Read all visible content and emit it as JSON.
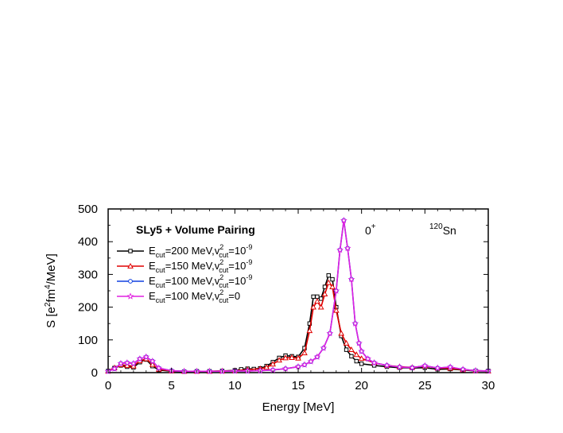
{
  "chart_data": {
    "type": "line",
    "title": "SLy5 + Volume Pairing",
    "annotations": {
      "state": "0",
      "state_sup": "+",
      "nucleus_mass": "120",
      "nucleus_symbol": "Sn"
    },
    "xlabel": "Energy [MeV]",
    "ylabel": {
      "prefix": "S [e",
      "sup1": "2",
      "mid": "fm",
      "sup2": "4",
      "suffix": "/MeV]"
    },
    "xlim": [
      0,
      30
    ],
    "ylim": [
      0,
      500
    ],
    "xticks": [
      0,
      5,
      10,
      15,
      20,
      25,
      30
    ],
    "yticks": [
      0,
      100,
      200,
      300,
      400,
      500
    ],
    "xtick_labels": [
      "0",
      "5",
      "10",
      "15",
      "20",
      "25",
      "30"
    ],
    "ytick_labels": [
      "0",
      "100",
      "200",
      "300",
      "400",
      "500"
    ],
    "grid": false,
    "legend_position": "top-left",
    "series": [
      {
        "legend": {
          "e": "E",
          "e_sub": "cut",
          "e_val": "=200 MeV,v",
          "v_sup": "2",
          "v_sub": "cut",
          "v_val": "=10",
          "v_val_sup": "-9"
        },
        "color": "#000000",
        "marker": "square",
        "points": [
          [
            0,
            5
          ],
          [
            0.5,
            14
          ],
          [
            1,
            22
          ],
          [
            1.5,
            18
          ],
          [
            2,
            16
          ],
          [
            2.5,
            32
          ],
          [
            3,
            40
          ],
          [
            3.5,
            20
          ],
          [
            4,
            8
          ],
          [
            5,
            4
          ],
          [
            6,
            3
          ],
          [
            7,
            4
          ],
          [
            8,
            4
          ],
          [
            9,
            5
          ],
          [
            10,
            7
          ],
          [
            10.5,
            10
          ],
          [
            11,
            12
          ],
          [
            11.5,
            11
          ],
          [
            12,
            13
          ],
          [
            12.5,
            20
          ],
          [
            13,
            32
          ],
          [
            13.5,
            45
          ],
          [
            14,
            52
          ],
          [
            14.5,
            50
          ],
          [
            15,
            48
          ],
          [
            15.5,
            75
          ],
          [
            15.9,
            150
          ],
          [
            16.2,
            232
          ],
          [
            16.5,
            232
          ],
          [
            16.8,
            226
          ],
          [
            17.1,
            262
          ],
          [
            17.4,
            297
          ],
          [
            17.7,
            285
          ],
          [
            18,
            200
          ],
          [
            18.4,
            112
          ],
          [
            18.8,
            70
          ],
          [
            19.2,
            50
          ],
          [
            19.6,
            35
          ],
          [
            20,
            27
          ],
          [
            21,
            22
          ],
          [
            22,
            18
          ],
          [
            23,
            15
          ],
          [
            24,
            14
          ],
          [
            25,
            15
          ],
          [
            26,
            10
          ],
          [
            27,
            11
          ],
          [
            28,
            8
          ],
          [
            29,
            5
          ],
          [
            30,
            5
          ]
        ]
      },
      {
        "legend": {
          "e": "E",
          "e_sub": "cut",
          "e_val": "=150 MeV,v",
          "v_sup": "2",
          "v_sub": "cut",
          "v_val": "=10",
          "v_val_sup": "-9"
        },
        "color": "#e00000",
        "marker": "triangle",
        "points": [
          [
            0,
            5
          ],
          [
            0.5,
            15
          ],
          [
            1,
            24
          ],
          [
            1.5,
            22
          ],
          [
            2,
            20
          ],
          [
            2.5,
            36
          ],
          [
            3,
            42
          ],
          [
            3.5,
            25
          ],
          [
            4,
            10
          ],
          [
            5,
            5
          ],
          [
            6,
            4
          ],
          [
            7,
            4
          ],
          [
            8,
            4
          ],
          [
            9,
            5
          ],
          [
            10,
            6
          ],
          [
            11,
            9
          ],
          [
            12,
            12
          ],
          [
            12.5,
            16
          ],
          [
            13,
            26
          ],
          [
            13.5,
            38
          ],
          [
            14,
            45
          ],
          [
            14.5,
            46
          ],
          [
            15,
            44
          ],
          [
            15.5,
            60
          ],
          [
            15.9,
            128
          ],
          [
            16.2,
            200
          ],
          [
            16.5,
            218
          ],
          [
            16.8,
            200
          ],
          [
            17.1,
            240
          ],
          [
            17.4,
            275
          ],
          [
            17.7,
            262
          ],
          [
            18,
            190
          ],
          [
            18.4,
            120
          ],
          [
            18.8,
            90
          ],
          [
            19.2,
            70
          ],
          [
            19.6,
            55
          ],
          [
            20,
            43
          ],
          [
            21,
            30
          ],
          [
            22,
            22
          ],
          [
            23,
            18
          ],
          [
            24,
            16
          ],
          [
            25,
            20
          ],
          [
            26,
            14
          ],
          [
            27,
            13
          ],
          [
            28,
            9
          ],
          [
            29,
            6
          ],
          [
            30,
            5
          ]
        ]
      },
      {
        "legend": {
          "e": "E",
          "e_sub": "cut",
          "e_val": "=100 MeV,v",
          "v_sup": "2",
          "v_sub": "cut",
          "v_val": "=10",
          "v_val_sup": "-9"
        },
        "color": "#1040e0",
        "marker": "circle",
        "points": [
          [
            0,
            4
          ],
          [
            0.5,
            12
          ],
          [
            1,
            28
          ],
          [
            1.5,
            30
          ],
          [
            2,
            28
          ],
          [
            2.5,
            42
          ],
          [
            3,
            48
          ],
          [
            3.5,
            35
          ],
          [
            4,
            14
          ],
          [
            5,
            6
          ],
          [
            6,
            4
          ],
          [
            7,
            4
          ],
          [
            8,
            4
          ],
          [
            9,
            4
          ],
          [
            10,
            5
          ],
          [
            11,
            5
          ],
          [
            12,
            6
          ],
          [
            13,
            8
          ],
          [
            14,
            12
          ],
          [
            15,
            18
          ],
          [
            15.5,
            24
          ],
          [
            16,
            34
          ],
          [
            16.5,
            48
          ],
          [
            17,
            75
          ],
          [
            17.5,
            120
          ],
          [
            18,
            250
          ],
          [
            18.3,
            375
          ],
          [
            18.6,
            465
          ],
          [
            18.9,
            380
          ],
          [
            19.2,
            285
          ],
          [
            19.5,
            150
          ],
          [
            19.8,
            90
          ],
          [
            20,
            65
          ],
          [
            20.5,
            42
          ],
          [
            21,
            30
          ],
          [
            22,
            22
          ],
          [
            23,
            17
          ],
          [
            24,
            15
          ],
          [
            25,
            21
          ],
          [
            26,
            14
          ],
          [
            27,
            17
          ],
          [
            28,
            10
          ],
          [
            29,
            6
          ],
          [
            30,
            5
          ]
        ]
      },
      {
        "legend": {
          "e": "E",
          "e_sub": "cut",
          "e_val": "=100 MeV,v",
          "v_sup": "2",
          "v_sub": "cut",
          "v_val": "=0",
          "v_val_sup": ""
        },
        "color": "#e020e0",
        "marker": "star",
        "points": [
          [
            0,
            4
          ],
          [
            0.5,
            12
          ],
          [
            1,
            28
          ],
          [
            1.5,
            30
          ],
          [
            2,
            28
          ],
          [
            2.5,
            42
          ],
          [
            3,
            48
          ],
          [
            3.5,
            35
          ],
          [
            4,
            14
          ],
          [
            5,
            6
          ],
          [
            6,
            4
          ],
          [
            7,
            4
          ],
          [
            8,
            4
          ],
          [
            9,
            4
          ],
          [
            10,
            5
          ],
          [
            11,
            5
          ],
          [
            12,
            6
          ],
          [
            13,
            8
          ],
          [
            14,
            12
          ],
          [
            15,
            18
          ],
          [
            15.5,
            24
          ],
          [
            16,
            34
          ],
          [
            16.5,
            48
          ],
          [
            17,
            75
          ],
          [
            17.5,
            120
          ],
          [
            18,
            250
          ],
          [
            18.3,
            375
          ],
          [
            18.6,
            465
          ],
          [
            18.9,
            380
          ],
          [
            19.2,
            285
          ],
          [
            19.5,
            150
          ],
          [
            19.8,
            90
          ],
          [
            20,
            65
          ],
          [
            20.5,
            42
          ],
          [
            21,
            30
          ],
          [
            22,
            22
          ],
          [
            23,
            17
          ],
          [
            24,
            15
          ],
          [
            25,
            21
          ],
          [
            26,
            14
          ],
          [
            27,
            17
          ],
          [
            28,
            10
          ],
          [
            29,
            6
          ],
          [
            30,
            5
          ]
        ]
      }
    ]
  }
}
